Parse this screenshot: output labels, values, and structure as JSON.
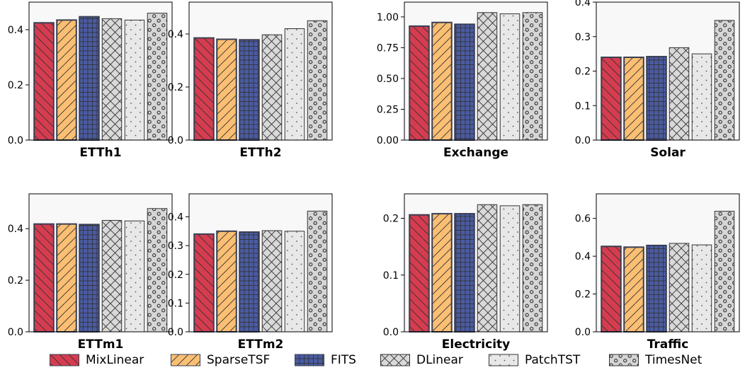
{
  "chart_data": {
    "type": "bar",
    "legend_placement": "bottom",
    "grid": false,
    "series": [
      {
        "name": "MixLinear",
        "color": "#d63c4f",
        "hatch": "diagonal-back"
      },
      {
        "name": "SparseTSF",
        "color": "#fbbf73",
        "hatch": "diagonal-forward"
      },
      {
        "name": "FITS",
        "color": "#4a5ba3",
        "hatch": "grid"
      },
      {
        "name": "DLinear",
        "color": "#d9d9d9",
        "hatch": "cross"
      },
      {
        "name": "PatchTST",
        "color": "#e8e8e8",
        "hatch": "dots"
      },
      {
        "name": "TimesNet",
        "color": "#d6d6d6",
        "hatch": "circles"
      }
    ],
    "panels": [
      {
        "title": "ETTh1",
        "ylim": [
          0,
          0.5
        ],
        "ticks": [
          0.0,
          0.2,
          0.4
        ],
        "tick_labels": [
          "0.0",
          "0.2",
          "0.4"
        ],
        "values": [
          0.425,
          0.435,
          0.447,
          0.44,
          0.435,
          0.46
        ]
      },
      {
        "title": "ETTh2",
        "ylim": [
          0,
          0.52
        ],
        "ticks": [
          0.0,
          0.2,
          0.4
        ],
        "tick_labels": [
          "0.0",
          "0.2",
          "0.4"
        ],
        "values": [
          0.385,
          0.38,
          0.378,
          0.397,
          0.42,
          0.45
        ]
      },
      {
        "title": "Exchange",
        "ylim": [
          0,
          1.12
        ],
        "ticks": [
          0.0,
          0.25,
          0.5,
          0.75,
          1.0
        ],
        "tick_labels": [
          "0.00",
          "0.25",
          "0.50",
          "0.75",
          "1.00"
        ],
        "values": [
          0.925,
          0.955,
          0.94,
          1.035,
          1.025,
          1.035
        ]
      },
      {
        "title": "Solar",
        "ylim": [
          0,
          0.4
        ],
        "ticks": [
          0.0,
          0.1,
          0.2,
          0.3,
          0.4
        ],
        "tick_labels": [
          "0.0",
          "0.1",
          "0.2",
          "0.3",
          "0.4"
        ],
        "values": [
          0.24,
          0.24,
          0.242,
          0.268,
          0.25,
          0.347
        ]
      },
      {
        "title": "ETTm1",
        "ylim": [
          0,
          0.535
        ],
        "ticks": [
          0.0,
          0.2,
          0.4
        ],
        "tick_labels": [
          "0.0",
          "0.2",
          "0.4"
        ],
        "values": [
          0.418,
          0.418,
          0.416,
          0.432,
          0.43,
          0.478
        ]
      },
      {
        "title": "ETTm2",
        "ylim": [
          0,
          0.48
        ],
        "ticks": [
          0.0,
          0.1,
          0.2,
          0.3,
          0.4
        ],
        "tick_labels": [
          "0.0",
          "0.1",
          "0.2",
          "0.3",
          "0.4"
        ],
        "values": [
          0.34,
          0.35,
          0.347,
          0.352,
          0.35,
          0.42
        ]
      },
      {
        "title": "Electricity",
        "ylim": [
          0,
          0.243
        ],
        "ticks": [
          0.0,
          0.1,
          0.2
        ],
        "tick_labels": [
          "0.0",
          "0.1",
          "0.2"
        ],
        "values": [
          0.206,
          0.208,
          0.208,
          0.224,
          0.222,
          0.224
        ]
      },
      {
        "title": "Traffic",
        "ylim": [
          0,
          0.73
        ],
        "ticks": [
          0.0,
          0.2,
          0.4,
          0.6
        ],
        "tick_labels": [
          "0.0",
          "0.2",
          "0.4",
          "0.6"
        ],
        "values": [
          0.452,
          0.448,
          0.457,
          0.468,
          0.46,
          0.638
        ]
      }
    ]
  }
}
